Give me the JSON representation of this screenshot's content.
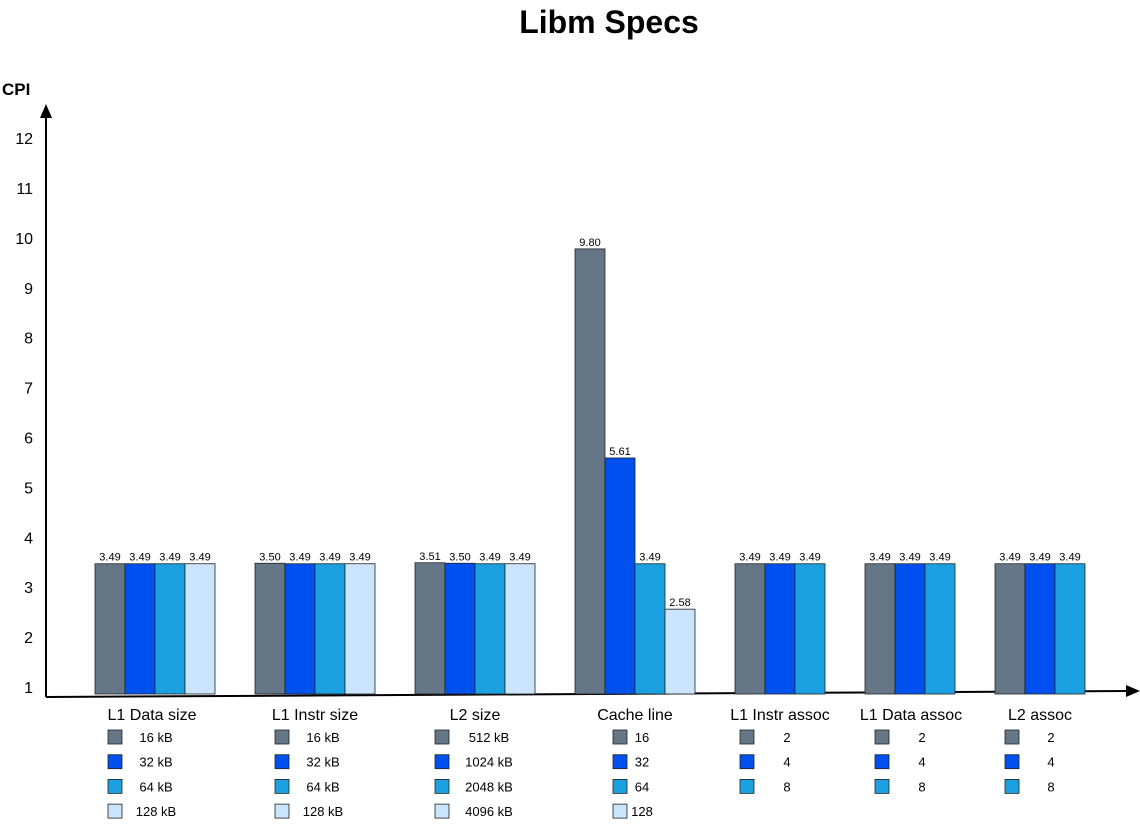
{
  "chart_data": {
    "type": "bar",
    "title": "Libm Specs",
    "xlabel": "",
    "ylabel": "CPI",
    "ylim": [
      1,
      12
    ],
    "yticks": [
      1,
      2,
      3,
      4,
      5,
      6,
      7,
      8,
      9,
      10,
      11,
      12
    ],
    "grid": false,
    "legend_placement": "below each group",
    "colors": [
      "#657687",
      "#0050EF",
      "#1BA1E2",
      "#CCE5FF"
    ],
    "groups": [
      {
        "name": "L1 Data size",
        "legend": [
          "16 kB",
          "32 kB",
          "64 kB",
          "128 kB"
        ],
        "values": [
          3.49,
          3.49,
          3.49,
          3.49
        ],
        "labels": [
          "3.49",
          "3.49",
          "3.49",
          "3.49"
        ]
      },
      {
        "name": "L1 Instr size",
        "legend": [
          "16 kB",
          "32 kB",
          "64 kB",
          "128 kB"
        ],
        "values": [
          3.5,
          3.49,
          3.49,
          3.49
        ],
        "labels": [
          "3.50",
          "3.49",
          "3.49",
          "3.49"
        ]
      },
      {
        "name": "L2 size",
        "legend": [
          "512 kB",
          "1024 kB",
          "2048 kB",
          "4096 kB"
        ],
        "values": [
          3.51,
          3.5,
          3.49,
          3.49
        ],
        "labels": [
          "3.51",
          "3.50",
          "3.49",
          "3.49"
        ]
      },
      {
        "name": "Cache line",
        "legend": [
          "16",
          "32",
          "64",
          "128"
        ],
        "values": [
          9.8,
          5.61,
          3.49,
          2.58
        ],
        "labels": [
          "9.80",
          "5.61",
          "3.49",
          "2.58"
        ]
      },
      {
        "name": "L1 Instr assoc",
        "legend": [
          "2",
          "4",
          "8"
        ],
        "values": [
          3.49,
          3.49,
          3.49
        ],
        "labels": [
          "3.49",
          "3.49",
          "3.49"
        ]
      },
      {
        "name": "L1 Data assoc",
        "legend": [
          "2",
          "4",
          "8"
        ],
        "values": [
          3.49,
          3.49,
          3.49
        ],
        "labels": [
          "3.49",
          "3.49",
          "3.49"
        ]
      },
      {
        "name": "L2 assoc",
        "legend": [
          "2",
          "4",
          "8"
        ],
        "values": [
          3.49,
          3.49,
          3.49
        ],
        "labels": [
          "3.49",
          "3.49",
          "3.49"
        ]
      }
    ]
  }
}
